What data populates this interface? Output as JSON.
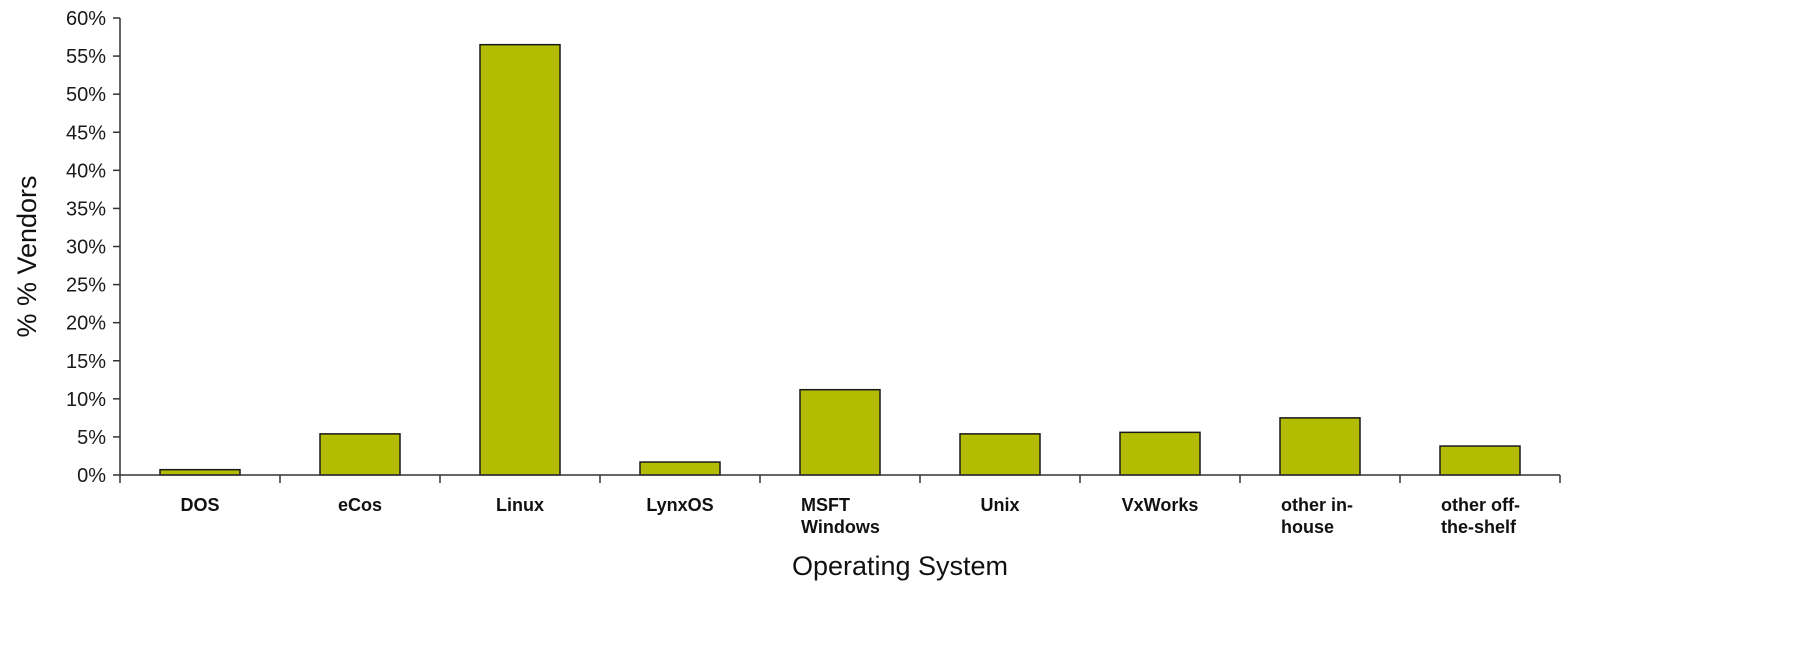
{
  "chart_data": {
    "type": "bar",
    "title": "",
    "xlabel": "Operating System",
    "ylabel": "% % Vendors",
    "ylim": [
      0,
      60
    ],
    "y_ticks": [
      "0%",
      "5%",
      "10%",
      "15%",
      "20%",
      "25%",
      "30%",
      "35%",
      "40%",
      "45%",
      "50%",
      "55%",
      "60%"
    ],
    "categories": [
      [
        "DOS"
      ],
      [
        "eCos"
      ],
      [
        "Linux"
      ],
      [
        "LynxOS"
      ],
      [
        "MSFT",
        "Windows"
      ],
      [
        "Unix"
      ],
      [
        "VxWorks"
      ],
      [
        "other in-",
        "house"
      ],
      [
        "other off-",
        "the-shelf"
      ]
    ],
    "values": [
      0.7,
      5.4,
      56.5,
      1.7,
      11.2,
      5.4,
      5.6,
      7.5,
      3.8
    ],
    "grid": false,
    "legend": "none",
    "bar_color": "#b2bc00",
    "bar_edge_color": "#1a1a1a"
  }
}
